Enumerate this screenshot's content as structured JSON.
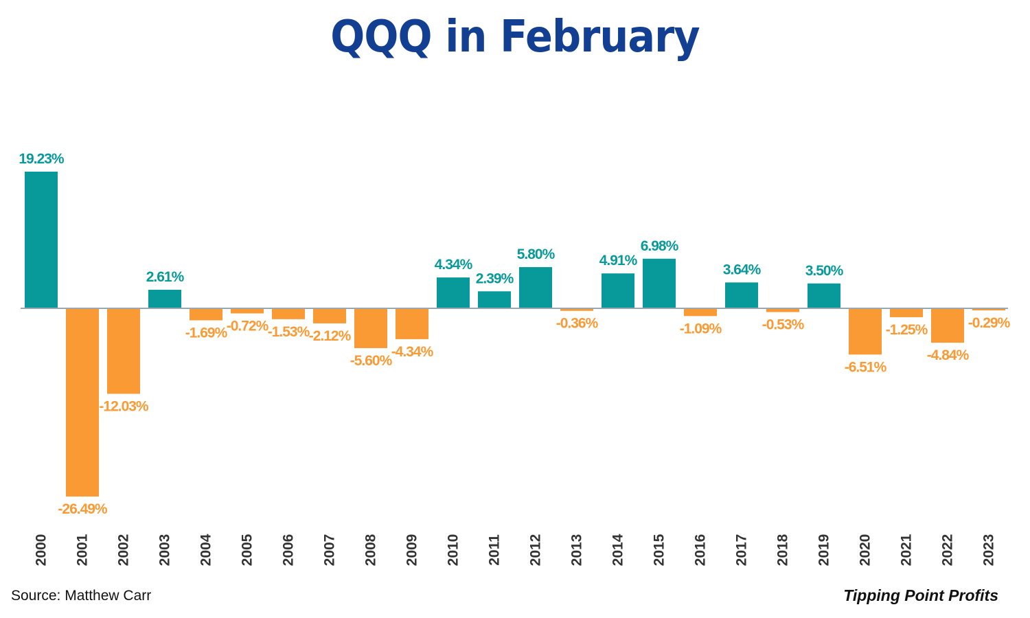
{
  "title": "QQQ in February",
  "source": "Source: Matthew Carr",
  "brand": "Tipping Point Profits",
  "colors": {
    "title": "#123f91",
    "positive": "#08999a",
    "negative": "#f99a34",
    "baseline": "#9aa6b0"
  },
  "chart_data": {
    "type": "bar",
    "title": "QQQ in February",
    "xlabel": "",
    "ylabel": "",
    "ylim": [
      -30,
      20
    ],
    "grid": false,
    "legend": "none",
    "categories": [
      "2000",
      "2001",
      "2002",
      "2003",
      "2004",
      "2005",
      "2006",
      "2007",
      "2008",
      "2009",
      "2010",
      "2011",
      "2012",
      "2013",
      "2014",
      "2015",
      "2016",
      "2017",
      "2018",
      "2019",
      "2020",
      "2021",
      "2022",
      "2023"
    ],
    "values": [
      19.23,
      -26.49,
      -12.03,
      2.61,
      -1.69,
      -0.72,
      -1.53,
      -2.12,
      -5.6,
      -4.34,
      4.34,
      2.39,
      5.8,
      -0.36,
      4.91,
      6.98,
      -1.09,
      3.64,
      -0.53,
      3.5,
      -6.51,
      -1.25,
      -4.84,
      -0.29
    ],
    "labels": [
      "19.23%",
      "-26.49%",
      "-12.03%",
      "2.61%",
      "-1.69%",
      "-0.72%",
      "-1.53%",
      "-2.12%",
      "-5.60%",
      "-4.34%",
      "4.34%",
      "2.39%",
      "5.80%",
      "-0.36%",
      "4.91%",
      "6.98%",
      "-1.09%",
      "3.64%",
      "-0.53%",
      "3.50%",
      "-6.51%",
      "-1.25%",
      "-4.84%",
      "-0.29%"
    ]
  }
}
